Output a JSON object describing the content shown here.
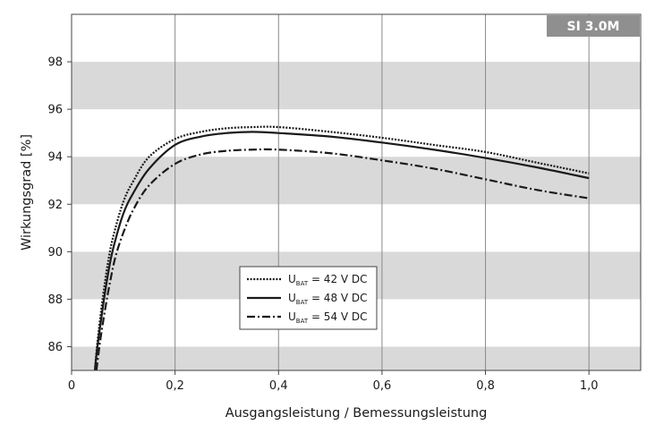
{
  "badge": "SI 3.0M",
  "chart_data": {
    "type": "line",
    "xlabel": "Ausgangsleistung / Bemessungsleistung",
    "ylabel": "Wirkungsgrad [%]",
    "xlim": [
      0,
      1.1
    ],
    "ylim": [
      85,
      100
    ],
    "x_ticks": [
      0,
      0.2,
      0.4,
      0.6,
      0.8,
      1.0
    ],
    "x_tick_labels": [
      "0",
      "0,2",
      "0,4",
      "0,6",
      "0,8",
      "1,0"
    ],
    "y_ticks": [
      86,
      88,
      90,
      92,
      94,
      96,
      98
    ],
    "y_tick_labels": [
      "86",
      "88",
      "90",
      "92",
      "94",
      "96",
      "98"
    ],
    "bands": [
      [
        85,
        86
      ],
      [
        88,
        90
      ],
      [
        92,
        94
      ],
      [
        96,
        98
      ]
    ],
    "grid": "vertical lines at x ticks; horizontal grey bands",
    "legend_position": "center-bottom",
    "series": [
      {
        "name": "U BAT = 42 V DC",
        "legend_main": "U",
        "legend_sub": "BAT",
        "legend_rest": " = 42 V DC",
        "style": "dotted",
        "color": "#1a1a1a",
        "x": [
          0.045,
          0.05,
          0.06,
          0.07,
          0.08,
          0.1,
          0.12,
          0.15,
          0.2,
          0.25,
          0.3,
          0.35,
          0.4,
          0.5,
          0.6,
          0.7,
          0.8,
          0.9,
          1.0
        ],
        "y": [
          85.0,
          86.2,
          88.0,
          89.5,
          90.6,
          92.1,
          93.0,
          94.0,
          94.75,
          95.05,
          95.2,
          95.25,
          95.25,
          95.05,
          94.8,
          94.5,
          94.2,
          93.75,
          93.3
        ]
      },
      {
        "name": "U BAT = 48 V DC",
        "legend_main": "U",
        "legend_sub": "BAT",
        "legend_rest": " = 48 V DC",
        "style": "solid",
        "color": "#1a1a1a",
        "x": [
          0.045,
          0.05,
          0.06,
          0.07,
          0.08,
          0.1,
          0.12,
          0.15,
          0.2,
          0.25,
          0.3,
          0.35,
          0.4,
          0.5,
          0.6,
          0.7,
          0.8,
          0.9,
          1.0
        ],
        "y": [
          85.0,
          86.0,
          87.6,
          89.0,
          90.1,
          91.6,
          92.5,
          93.5,
          94.5,
          94.85,
          95.0,
          95.05,
          95.0,
          94.85,
          94.6,
          94.3,
          93.95,
          93.55,
          93.1
        ]
      },
      {
        "name": "U BAT = 54 V DC",
        "legend_main": "U",
        "legend_sub": "BAT",
        "legend_rest": " = 54 V DC",
        "style": "dashdot",
        "color": "#1a1a1a",
        "x": [
          0.048,
          0.055,
          0.065,
          0.075,
          0.085,
          0.1,
          0.12,
          0.15,
          0.2,
          0.25,
          0.3,
          0.35,
          0.4,
          0.5,
          0.6,
          0.7,
          0.8,
          0.9,
          1.0
        ],
        "y": [
          85.0,
          86.2,
          87.6,
          88.8,
          89.8,
          90.8,
          91.8,
          92.8,
          93.7,
          94.1,
          94.25,
          94.3,
          94.3,
          94.15,
          93.85,
          93.5,
          93.05,
          92.6,
          92.25
        ]
      }
    ]
  }
}
